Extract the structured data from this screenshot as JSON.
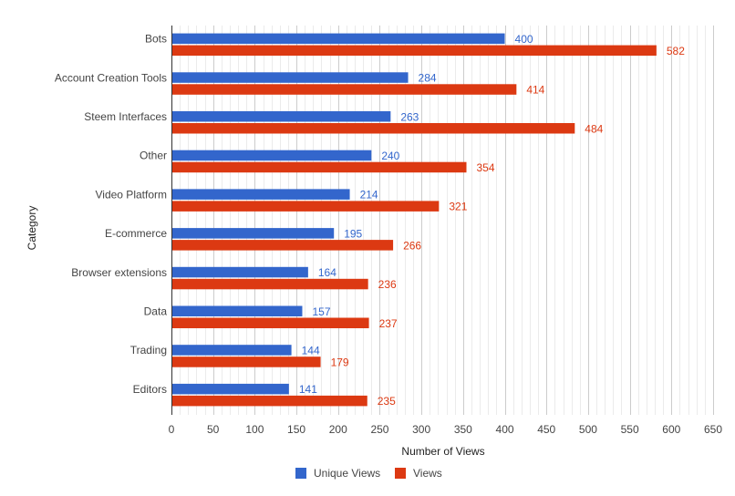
{
  "chart_data": {
    "type": "bar",
    "orientation": "horizontal",
    "categories": [
      "Bots",
      "Account Creation Tools",
      "Steem Interfaces",
      "Other",
      "Video Platform",
      "E-commerce",
      "Browser extensions",
      "Data",
      "Trading",
      "Editors"
    ],
    "series": [
      {
        "name": "Unique Views",
        "color": "#3366cc",
        "values": [
          400,
          284,
          263,
          240,
          214,
          195,
          164,
          157,
          144,
          141
        ]
      },
      {
        "name": "Views",
        "color": "#dc3912",
        "values": [
          582,
          414,
          484,
          354,
          321,
          266,
          236,
          237,
          179,
          235
        ]
      }
    ],
    "xlabel": "Number of Views",
    "ylabel": "Category",
    "xlim": [
      0,
      650
    ],
    "xticks": [
      0,
      50,
      100,
      150,
      200,
      250,
      300,
      350,
      400,
      450,
      500,
      550,
      600,
      650
    ],
    "minor_grid_step": 10,
    "grid": true,
    "data_labels": true,
    "legend_position": "bottom"
  }
}
